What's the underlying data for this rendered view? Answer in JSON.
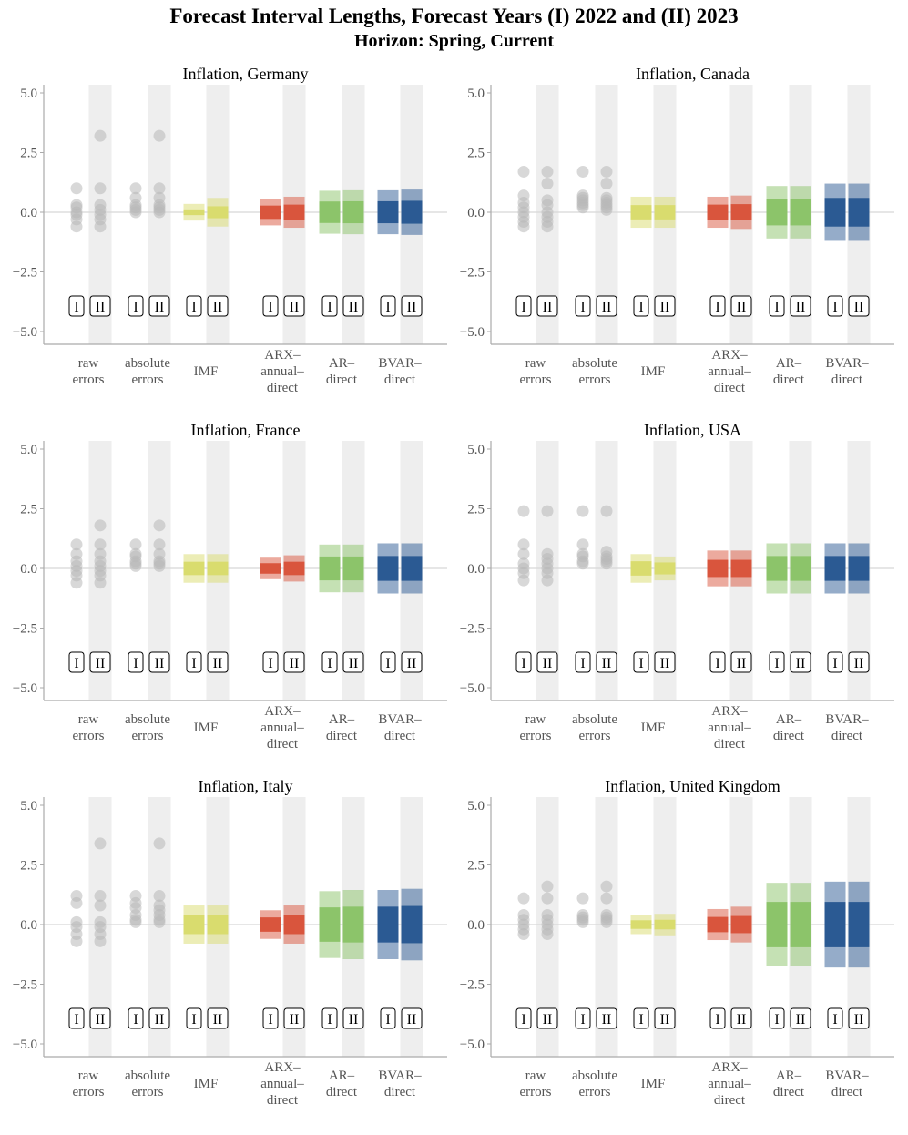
{
  "title": "Forecast Interval Lengths, Forecast Years (I) 2022 and (II) 2023",
  "subtitle": "Horizon: Spring, Current",
  "year_labels": [
    "I",
    "II"
  ],
  "colors": {
    "points": "#b8b8b8",
    "shade": "#eeeeee",
    "IMF": "#d9dc6e",
    "ARX": "#d9553d",
    "AR": "#8cc46a",
    "BVAR": "#2b5a93",
    "axis": "#aaaaaa",
    "zero": "#d8d8d8"
  },
  "categories": [
    {
      "key": "raw",
      "lines": [
        "raw",
        "errors"
      ]
    },
    {
      "key": "abs",
      "lines": [
        "absolute",
        "errors"
      ]
    },
    {
      "key": "IMF",
      "lines": [
        "IMF"
      ]
    },
    {
      "key": "ARX",
      "lines": [
        "ARX–",
        "annual–",
        "direct"
      ]
    },
    {
      "key": "AR",
      "lines": [
        "AR–",
        "direct"
      ]
    },
    {
      "key": "BVAR",
      "lines": [
        "BVAR–",
        "direct"
      ]
    }
  ],
  "chart_data": [
    {
      "type": "scatter+interval",
      "title": "Inflation, Germany",
      "ylim": [
        -5.0,
        5.0
      ],
      "yticks": [
        "5.0",
        "2.5",
        "0.0",
        "−2.5",
        "−5.0"
      ],
      "raw": [
        [
          1.0,
          0.3,
          0.2,
          0.0,
          -0.1,
          -0.3,
          -0.6
        ],
        [
          3.2,
          1.0,
          0.3,
          0.1,
          -0.1,
          -0.3,
          -0.6
        ]
      ],
      "abs": [
        [
          1.0,
          0.6,
          0.3,
          0.2,
          0.1,
          0.0
        ],
        [
          3.2,
          1.0,
          0.6,
          0.3,
          0.2,
          0.1,
          0.0
        ]
      ],
      "intervals": {
        "IMF": [
          [
            -0.35,
            -0.12,
            0.12,
            0.35
          ],
          [
            -0.6,
            -0.25,
            0.25,
            0.6
          ]
        ],
        "ARX": [
          [
            -0.55,
            -0.28,
            0.28,
            0.55
          ],
          [
            -0.65,
            -0.32,
            0.32,
            0.65
          ]
        ],
        "AR": [
          [
            -0.9,
            -0.45,
            0.45,
            0.9
          ],
          [
            -0.92,
            -0.46,
            0.46,
            0.92
          ]
        ],
        "BVAR": [
          [
            -0.92,
            -0.46,
            0.46,
            0.92
          ],
          [
            -0.95,
            -0.48,
            0.48,
            0.95
          ]
        ]
      }
    },
    {
      "type": "scatter+interval",
      "title": "Inflation, Canada",
      "ylim": [
        -5.0,
        5.0
      ],
      "yticks": [
        "5.0",
        "2.5",
        "0.0",
        "−2.5",
        "−5.0"
      ],
      "raw": [
        [
          1.7,
          0.7,
          0.4,
          0.2,
          0.0,
          -0.2,
          -0.4,
          -0.6
        ],
        [
          1.7,
          1.2,
          0.5,
          0.3,
          0.0,
          -0.2,
          -0.4,
          -0.6
        ]
      ],
      "abs": [
        [
          1.7,
          0.7,
          0.6,
          0.5,
          0.4,
          0.3,
          0.2
        ],
        [
          1.7,
          1.2,
          0.6,
          0.5,
          0.4,
          0.3,
          0.2,
          0.1
        ]
      ],
      "intervals": {
        "IMF": [
          [
            -0.65,
            -0.3,
            0.3,
            0.65
          ],
          [
            -0.65,
            -0.3,
            0.3,
            0.65
          ]
        ],
        "ARX": [
          [
            -0.65,
            -0.32,
            0.32,
            0.65
          ],
          [
            -0.7,
            -0.34,
            0.34,
            0.7
          ]
        ],
        "AR": [
          [
            -1.1,
            -0.55,
            0.55,
            1.1
          ],
          [
            -1.1,
            -0.55,
            0.55,
            1.1
          ]
        ],
        "BVAR": [
          [
            -1.2,
            -0.6,
            0.6,
            1.2
          ],
          [
            -1.2,
            -0.6,
            0.6,
            1.2
          ]
        ]
      }
    },
    {
      "type": "scatter+interval",
      "title": "Inflation, France",
      "ylim": [
        -5.0,
        5.0
      ],
      "yticks": [
        "5.0",
        "2.5",
        "0.0",
        "−2.5",
        "−5.0"
      ],
      "raw": [
        [
          1.0,
          0.6,
          0.3,
          0.1,
          -0.1,
          -0.3,
          -0.6
        ],
        [
          1.8,
          1.0,
          0.6,
          0.3,
          0.1,
          -0.1,
          -0.3,
          -0.6
        ]
      ],
      "abs": [
        [
          1.0,
          0.6,
          0.5,
          0.3,
          0.2,
          0.1
        ],
        [
          1.8,
          1.0,
          0.6,
          0.3,
          0.2,
          0.1
        ]
      ],
      "intervals": {
        "IMF": [
          [
            -0.6,
            -0.28,
            0.28,
            0.6
          ],
          [
            -0.6,
            -0.28,
            0.28,
            0.6
          ]
        ],
        "ARX": [
          [
            -0.45,
            -0.22,
            0.22,
            0.45
          ],
          [
            -0.55,
            -0.28,
            0.28,
            0.55
          ]
        ],
        "AR": [
          [
            -1.0,
            -0.5,
            0.5,
            1.0
          ],
          [
            -1.0,
            -0.5,
            0.5,
            1.0
          ]
        ],
        "BVAR": [
          [
            -1.05,
            -0.52,
            0.52,
            1.05
          ],
          [
            -1.05,
            -0.52,
            0.52,
            1.05
          ]
        ]
      }
    },
    {
      "type": "scatter+interval",
      "title": "Inflation, USA",
      "ylim": [
        -5.0,
        5.0
      ],
      "yticks": [
        "5.0",
        "2.5",
        "0.0",
        "−2.5",
        "−5.0"
      ],
      "raw": [
        [
          2.4,
          1.0,
          0.6,
          0.2,
          0.0,
          -0.2,
          -0.5
        ],
        [
          2.4,
          0.6,
          0.4,
          0.2,
          0.0,
          -0.2,
          -0.5
        ]
      ],
      "abs": [
        [
          2.4,
          1.0,
          0.6,
          0.5,
          0.3,
          0.2
        ],
        [
          2.4,
          0.7,
          0.5,
          0.4,
          0.3,
          0.2
        ]
      ],
      "intervals": {
        "IMF": [
          [
            -0.6,
            -0.3,
            0.3,
            0.6
          ],
          [
            -0.5,
            -0.25,
            0.25,
            0.5
          ]
        ],
        "ARX": [
          [
            -0.75,
            -0.36,
            0.36,
            0.75
          ],
          [
            -0.75,
            -0.36,
            0.36,
            0.75
          ]
        ],
        "AR": [
          [
            -1.05,
            -0.52,
            0.52,
            1.05
          ],
          [
            -1.05,
            -0.52,
            0.52,
            1.05
          ]
        ],
        "BVAR": [
          [
            -1.05,
            -0.52,
            0.52,
            1.05
          ],
          [
            -1.05,
            -0.52,
            0.52,
            1.05
          ]
        ]
      }
    },
    {
      "type": "scatter+interval",
      "title": "Inflation, Italy",
      "ylim": [
        -5.0,
        5.0
      ],
      "yticks": [
        "5.0",
        "2.5",
        "0.0",
        "−2.5",
        "−5.0"
      ],
      "raw": [
        [
          1.2,
          0.9,
          0.1,
          -0.1,
          -0.4,
          -0.7
        ],
        [
          3.4,
          1.2,
          0.8,
          0.1,
          -0.1,
          -0.4,
          -0.7
        ]
      ],
      "abs": [
        [
          1.2,
          0.9,
          0.7,
          0.4,
          0.2,
          0.1
        ],
        [
          3.4,
          1.2,
          0.8,
          0.6,
          0.4,
          0.2,
          0.1
        ]
      ],
      "intervals": {
        "IMF": [
          [
            -0.8,
            -0.4,
            0.4,
            0.8
          ],
          [
            -0.8,
            -0.4,
            0.4,
            0.8
          ]
        ],
        "ARX": [
          [
            -0.6,
            -0.3,
            0.3,
            0.6
          ],
          [
            -0.8,
            -0.4,
            0.4,
            0.8
          ]
        ],
        "AR": [
          [
            -1.4,
            -0.72,
            0.72,
            1.4
          ],
          [
            -1.45,
            -0.75,
            0.75,
            1.45
          ]
        ],
        "BVAR": [
          [
            -1.45,
            -0.75,
            0.75,
            1.45
          ],
          [
            -1.5,
            -0.78,
            0.78,
            1.5
          ]
        ]
      }
    },
    {
      "type": "scatter+interval",
      "title": "Inflation, United Kingdom",
      "ylim": [
        -5.0,
        5.0
      ],
      "yticks": [
        "5.0",
        "2.5",
        "0.0",
        "−2.5",
        "−5.0"
      ],
      "raw": [
        [
          1.1,
          0.4,
          0.2,
          0.0,
          -0.2,
          -0.4
        ],
        [
          1.6,
          1.1,
          0.4,
          0.2,
          0.0,
          -0.2,
          -0.4
        ]
      ],
      "abs": [
        [
          1.1,
          0.4,
          0.3,
          0.2,
          0.1
        ],
        [
          1.6,
          1.1,
          0.4,
          0.3,
          0.2,
          0.1
        ]
      ],
      "intervals": {
        "IMF": [
          [
            -0.4,
            -0.18,
            0.18,
            0.4
          ],
          [
            -0.45,
            -0.2,
            0.2,
            0.45
          ]
        ],
        "ARX": [
          [
            -0.65,
            -0.32,
            0.32,
            0.65
          ],
          [
            -0.75,
            -0.36,
            0.36,
            0.75
          ]
        ],
        "AR": [
          [
            -1.75,
            -0.95,
            0.95,
            1.75
          ],
          [
            -1.75,
            -0.95,
            0.95,
            1.75
          ]
        ],
        "BVAR": [
          [
            -1.8,
            -0.95,
            0.95,
            1.8
          ],
          [
            -1.8,
            -0.95,
            0.95,
            1.8
          ]
        ]
      }
    }
  ]
}
